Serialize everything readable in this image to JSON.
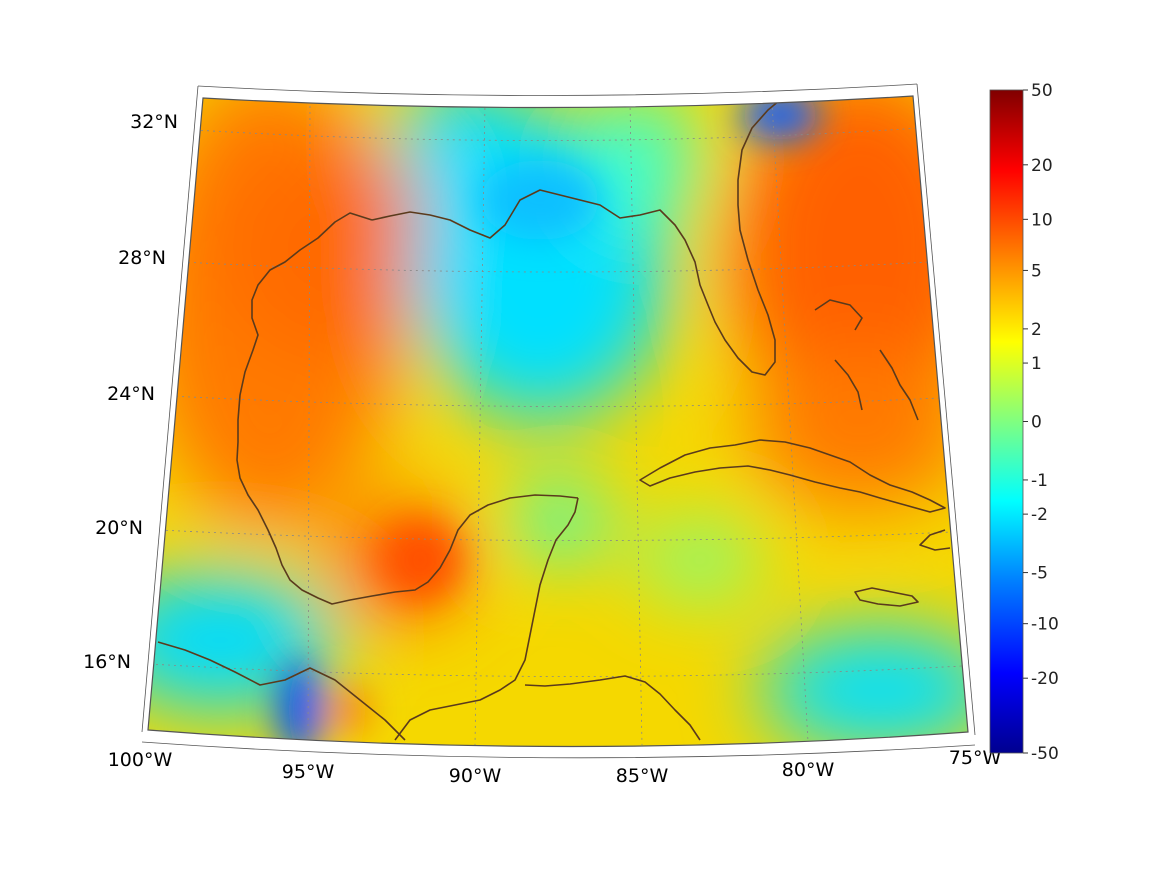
{
  "map": {
    "lat_labels": [
      "32°N",
      "28°N",
      "24°N",
      "20°N",
      "16°N"
    ],
    "lon_labels": [
      "100°W",
      "95°W",
      "90°W",
      "85°W",
      "80°W",
      "75°W"
    ],
    "colors": {
      "coast": "#5a3a1c",
      "grid": "#888888",
      "frame": "#555555"
    }
  },
  "colorbar": {
    "tick_labels": [
      "50",
      "20",
      "10",
      "5",
      "2",
      "1",
      "0",
      "-1",
      "-2",
      "-5",
      "-10",
      "-20",
      "-50"
    ],
    "ticks": [
      50,
      20,
      10,
      5,
      2,
      1,
      0,
      -1,
      -2,
      -5,
      -10,
      -20,
      -50
    ],
    "range": [
      -50,
      50
    ],
    "colormap": [
      "#00008f",
      "#0000ff",
      "#0080ff",
      "#00ffff",
      "#80ff80",
      "#ffff00",
      "#ff8000",
      "#ff0000",
      "#800000"
    ]
  }
}
